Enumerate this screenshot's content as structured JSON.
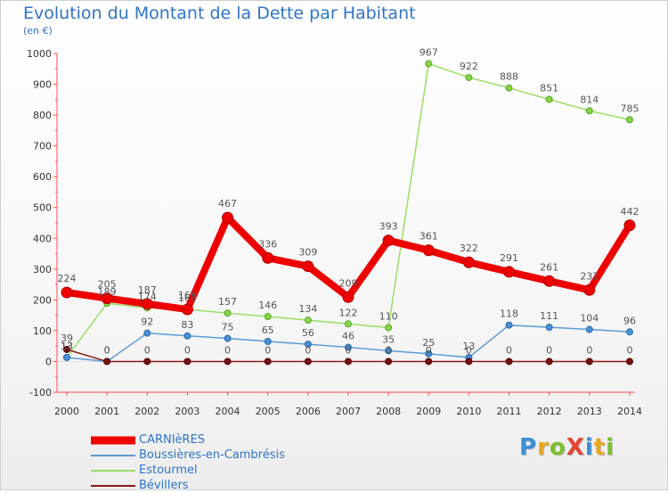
{
  "title": "Evolution du Montant de la Dette par Habitant",
  "subtitle": "(en €)",
  "logo": {
    "text": "ProXiti",
    "letters": [
      {
        "ch": "P",
        "color": "#3a8fd8"
      },
      {
        "ch": "r",
        "color": "#e9a61f"
      },
      {
        "ch": "o",
        "color": "#7cbf2f"
      },
      {
        "ch": "X",
        "color": "#e2462f"
      },
      {
        "ch": "i",
        "color": "#3a8fd8"
      },
      {
        "ch": "t",
        "color": "#e9a61f"
      },
      {
        "ch": "i",
        "color": "#7cbf2f"
      }
    ]
  },
  "chart_data": {
    "type": "line",
    "x": [
      "2000",
      "2001",
      "2002",
      "2003",
      "2004",
      "2005",
      "2006",
      "2007",
      "2008",
      "2009",
      "2010",
      "2011",
      "2012",
      "2013",
      "2014"
    ],
    "ylim": [
      -100,
      1000
    ],
    "yticks": [
      -100,
      0,
      100,
      200,
      300,
      400,
      500,
      600,
      700,
      800,
      900,
      1000
    ],
    "grid": false,
    "legend_position": "bottom-left",
    "series": [
      {
        "name": "CARNIèRES",
        "color": "#ee0000",
        "values": [
          224,
          205,
          187,
          169,
          467,
          336,
          309,
          209,
          393,
          361,
          322,
          291,
          261,
          232,
          442
        ],
        "labels": [
          "224",
          "205",
          "187",
          "169",
          "467",
          "336",
          "309",
          "209",
          "393",
          "361",
          "322",
          "291",
          "261",
          "232",
          "442"
        ]
      },
      {
        "name": "Boussières-en-Cambrésis",
        "color": "#5b9bd5",
        "values": [
          13,
          0,
          92,
          83,
          75,
          65,
          56,
          46,
          35,
          25,
          13,
          118,
          111,
          104,
          96
        ],
        "labels": [
          "13",
          "0",
          "92",
          "83",
          "75",
          "65",
          "56",
          "46",
          "35",
          "25",
          "13",
          "118",
          "111",
          "104",
          "96"
        ]
      },
      {
        "name": "Estourmel",
        "color": "#99dd66",
        "values": [
          13,
          189,
          174,
          169,
          157,
          146,
          134,
          122,
          110,
          967,
          922,
          888,
          851,
          814,
          785
        ],
        "labels": [
          "13",
          "189",
          "174",
          "169",
          "157",
          "146",
          "134",
          "122",
          "110",
          "967",
          "922",
          "888",
          "851",
          "814",
          "785"
        ]
      },
      {
        "name": "Bévillers",
        "color": "#8b1a1a",
        "values": [
          39,
          0,
          0,
          0,
          0,
          0,
          0,
          0,
          0,
          0,
          0,
          0,
          0,
          0,
          0
        ],
        "labels": [
          "39",
          "0",
          "0",
          "0",
          "0",
          "0",
          "0",
          "0",
          "0",
          "0",
          "0",
          "0",
          "0",
          "0",
          "0"
        ]
      }
    ]
  }
}
